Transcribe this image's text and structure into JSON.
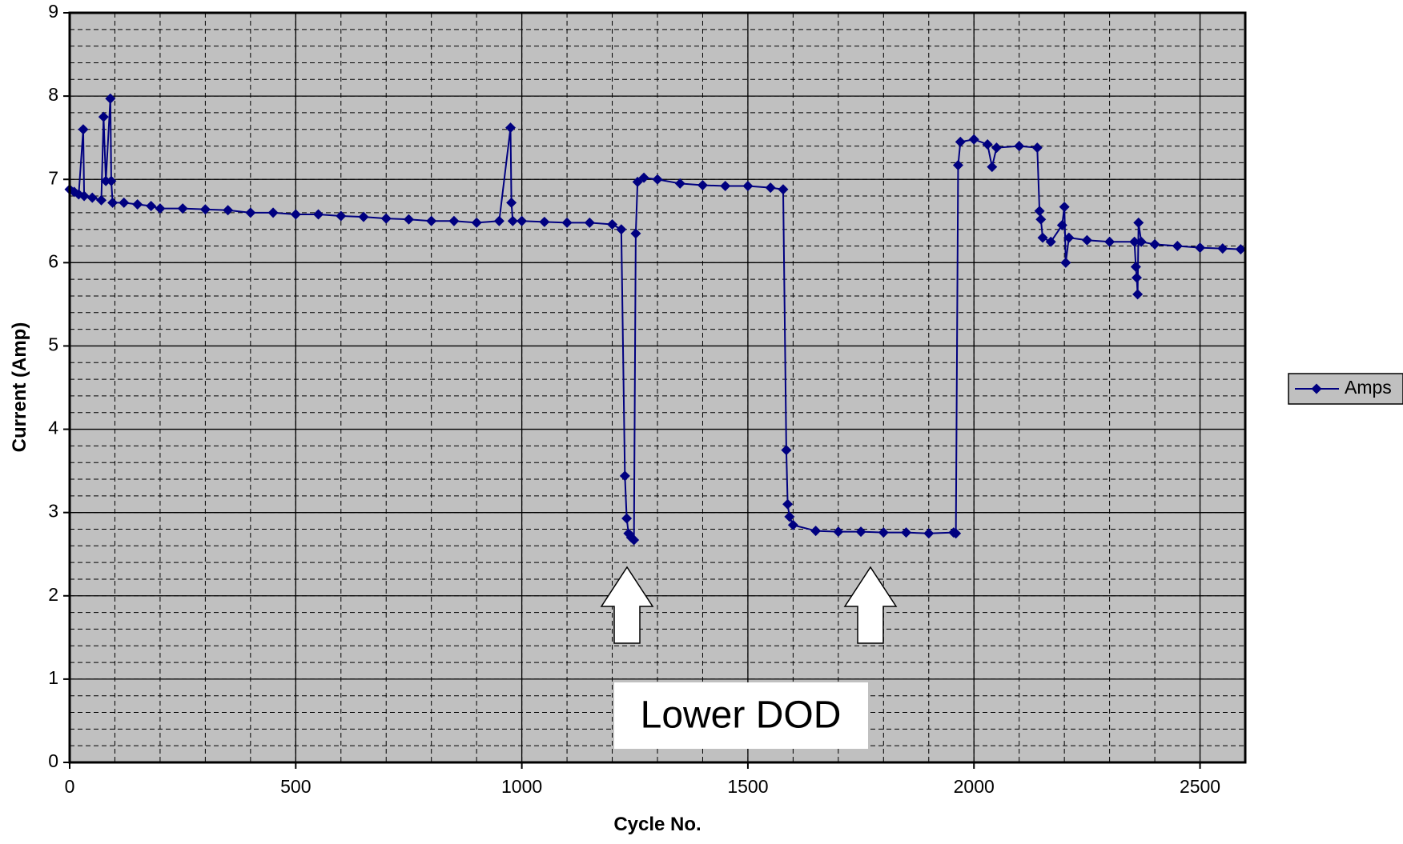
{
  "chart_data": {
    "type": "line",
    "x_label": "Cycle No.",
    "y_label": "Current (Amp)",
    "annotation": "Lower DOD",
    "legend": "right",
    "grid": true,
    "xlim": [
      0,
      2600
    ],
    "ylim": [
      0,
      9
    ],
    "xticks": [
      0,
      500,
      1000,
      1500,
      2000,
      2500
    ],
    "yticks": [
      0,
      1,
      2,
      3,
      4,
      5,
      6,
      7,
      8,
      9
    ],
    "x": [
      0,
      10,
      20,
      30,
      32,
      50,
      70,
      75,
      80,
      90,
      92,
      95,
      120,
      150,
      180,
      200,
      250,
      300,
      350,
      400,
      450,
      500,
      550,
      600,
      650,
      700,
      750,
      800,
      850,
      900,
      950,
      975,
      977,
      980,
      1000,
      1050,
      1100,
      1150,
      1200,
      1220,
      1228,
      1232,
      1236,
      1242,
      1248,
      1252,
      1256,
      1270,
      1300,
      1350,
      1400,
      1450,
      1500,
      1550,
      1578,
      1585,
      1588,
      1592,
      1600,
      1650,
      1700,
      1750,
      1800,
      1850,
      1900,
      1955,
      1960,
      1965,
      1970,
      2000,
      2030,
      2040,
      2050,
      2100,
      2140,
      2145,
      2148,
      2152,
      2170,
      2195,
      2200,
      2203,
      2210,
      2250,
      2300,
      2355,
      2358,
      2360,
      2362,
      2364,
      2370,
      2400,
      2450,
      2500,
      2550,
      2590
    ],
    "series": [
      {
        "name": "Amps",
        "color": "#000080",
        "values": [
          6.88,
          6.85,
          6.82,
          7.6,
          6.8,
          6.78,
          6.75,
          7.75,
          6.98,
          7.97,
          6.98,
          6.72,
          6.72,
          6.7,
          6.68,
          6.65,
          6.65,
          6.64,
          6.63,
          6.6,
          6.6,
          6.58,
          6.58,
          6.56,
          6.55,
          6.53,
          6.52,
          6.5,
          6.5,
          6.48,
          6.5,
          7.62,
          6.72,
          6.5,
          6.5,
          6.49,
          6.48,
          6.48,
          6.46,
          6.4,
          3.44,
          2.93,
          2.75,
          2.7,
          2.67,
          6.35,
          6.97,
          7.02,
          7.0,
          6.95,
          6.93,
          6.92,
          6.92,
          6.9,
          6.88,
          3.75,
          3.1,
          2.95,
          2.85,
          2.78,
          2.77,
          2.77,
          2.76,
          2.76,
          2.75,
          2.76,
          2.75,
          7.17,
          7.45,
          7.48,
          7.42,
          7.15,
          7.38,
          7.4,
          7.38,
          6.62,
          6.52,
          6.3,
          6.25,
          6.45,
          6.67,
          6.0,
          6.3,
          6.27,
          6.25,
          6.25,
          5.95,
          5.82,
          5.62,
          6.48,
          6.25,
          6.22,
          6.2,
          6.18,
          6.17,
          6.16
        ]
      }
    ]
  }
}
